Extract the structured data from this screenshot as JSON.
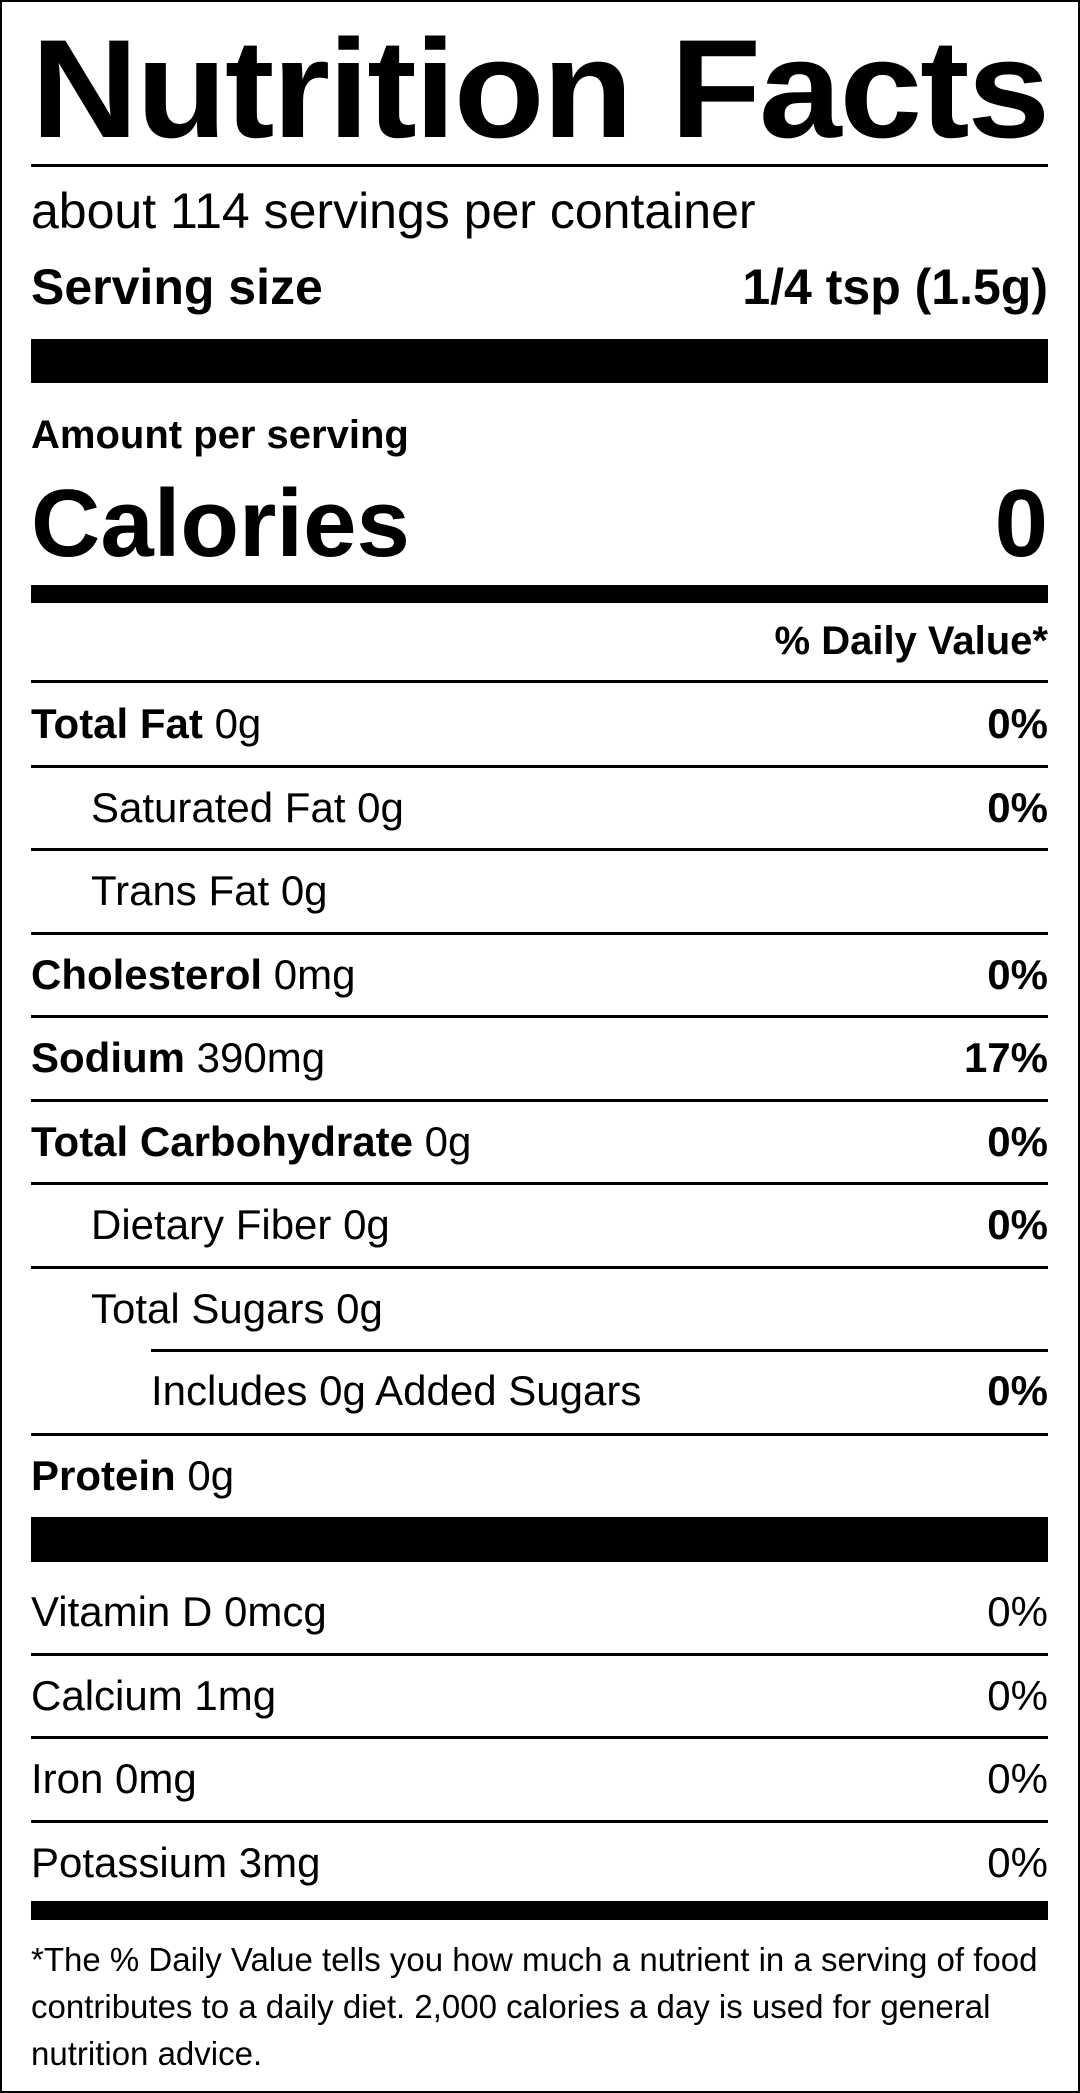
{
  "title": "Nutrition Facts",
  "servings_per_container": "about 114 servings per container",
  "serving_size": {
    "label": "Serving size",
    "value": "1/4 tsp (1.5g)"
  },
  "amount_per_serving": "Amount per serving",
  "calories": {
    "label": "Calories",
    "value": "0"
  },
  "daily_value_header": "% Daily Value*",
  "nutrients": [
    {
      "name": "Total Fat",
      "amount": "0g",
      "dv": "0%"
    },
    {
      "name": "Saturated Fat",
      "amount": "0g",
      "dv": "0%"
    },
    {
      "name": "Trans Fat",
      "amount": "0g",
      "dv": ""
    },
    {
      "name": "Cholesterol",
      "amount": "0mg",
      "dv": "0%"
    },
    {
      "name": "Sodium",
      "amount": "390mg",
      "dv": "17%"
    },
    {
      "name": "Total Carbohydrate",
      "amount": "0g",
      "dv": "0%"
    },
    {
      "name": "Dietary Fiber",
      "amount": "0g",
      "dv": "0%"
    },
    {
      "name": "Total Sugars",
      "amount": "0g",
      "dv": ""
    },
    {
      "name": "Includes 0g Added Sugars",
      "amount": "",
      "dv": "0%"
    },
    {
      "name": "Protein",
      "amount": "0g",
      "dv": ""
    }
  ],
  "micronutrients": [
    {
      "name": "Vitamin D",
      "amount": "0mcg",
      "dv": "0%"
    },
    {
      "name": "Calcium",
      "amount": "1mg",
      "dv": "0%"
    },
    {
      "name": "Iron",
      "amount": "0mg",
      "dv": "0%"
    },
    {
      "name": "Potassium",
      "amount": "3mg",
      "dv": "0%"
    }
  ],
  "footnote": "*The % Daily Value tells you how much a nutrient in a serving of food contributes to a daily diet. 2,000 calories a day is used for general nutrition advice."
}
